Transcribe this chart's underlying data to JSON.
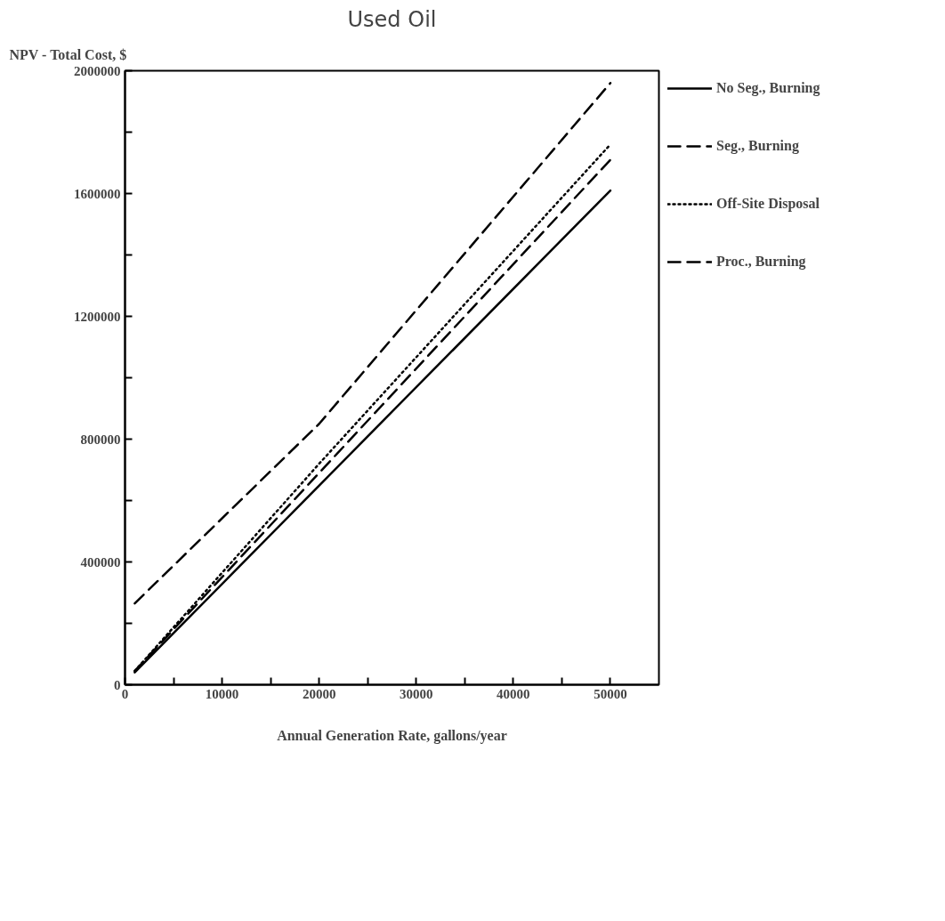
{
  "chart_data": {
    "type": "line",
    "title": "Used Oil",
    "ylabel": "NPV - Total Cost, $",
    "xlabel": "Annual Generation Rate, gallons/year",
    "xlim": [
      0,
      55000
    ],
    "ylim": [
      0,
      2000000
    ],
    "xticks": [
      0,
      {
        "value": 5000,
        "label": null
      },
      10000,
      {
        "value": 15000,
        "label": null
      },
      20000,
      {
        "value": 25000,
        "label": null
      },
      30000,
      {
        "value": 35000,
        "label": null
      },
      40000,
      {
        "value": 45000,
        "label": null
      },
      50000
    ],
    "yticks": [
      0,
      {
        "value": 200000,
        "label": null
      },
      400000,
      {
        "value": 600000,
        "label": null
      },
      800000,
      {
        "value": 1000000,
        "label": null
      },
      1200000,
      {
        "value": 1400000,
        "label": null
      },
      1600000,
      {
        "value": 1800000,
        "label": null
      },
      2000000
    ],
    "grid": false,
    "legend": "top right",
    "marker": "none",
    "series": [
      {
        "name": "No Seg., Burning",
        "color": "#000000",
        "line_style": "solid",
        "x": [
          1000,
          50000
        ],
        "values": [
          40000,
          1610000
        ]
      },
      {
        "name": "Seg., Burning",
        "color": "#000000",
        "line_style": "dashed",
        "x": [
          1000,
          20000,
          50000
        ],
        "values": [
          45000,
          690000,
          1710000
        ]
      },
      {
        "name": "Off-Site Disposal",
        "color": "#000000",
        "line_style": "dotted",
        "x": [
          1000,
          20000,
          50000
        ],
        "values": [
          45000,
          720000,
          1760000
        ]
      },
      {
        "name": "Proc., Burning",
        "color": "#000000",
        "line_style": "dashed",
        "x": [
          1000,
          20000,
          50000
        ],
        "values": [
          265000,
          850000,
          1960000
        ]
      }
    ]
  }
}
